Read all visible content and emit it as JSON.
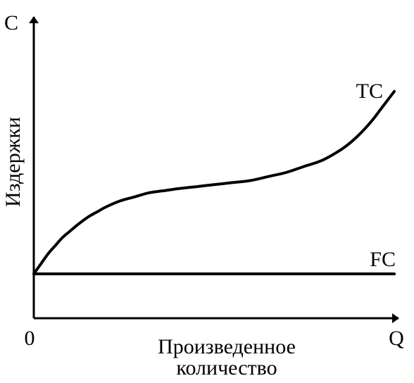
{
  "chart_data": {
    "type": "line",
    "title": "",
    "xlabel": "Произведенное количество",
    "xlabel_lines": [
      "Произведенное",
      "количество"
    ],
    "ylabel": "Издержки",
    "x_axis_symbol": "Q",
    "y_axis_symbol": "C",
    "origin_label": "0",
    "grid": false,
    "legend": "none",
    "series": [
      {
        "name": "TC",
        "shape": "cubic",
        "points": [
          [
            0,
            0.0
          ],
          [
            0.02,
            0.05
          ],
          [
            0.04,
            0.1
          ],
          [
            0.06,
            0.14
          ],
          [
            0.08,
            0.18
          ],
          [
            0.1,
            0.21
          ],
          [
            0.12,
            0.24
          ],
          [
            0.15,
            0.28
          ],
          [
            0.18,
            0.31
          ],
          [
            0.2,
            0.33
          ],
          [
            0.24,
            0.36
          ],
          [
            0.28,
            0.38
          ],
          [
            0.32,
            0.4
          ],
          [
            0.36,
            0.41
          ],
          [
            0.4,
            0.42
          ],
          [
            0.45,
            0.43
          ],
          [
            0.5,
            0.44
          ],
          [
            0.55,
            0.45
          ],
          [
            0.6,
            0.46
          ],
          [
            0.65,
            0.48
          ],
          [
            0.7,
            0.5
          ],
          [
            0.75,
            0.53
          ],
          [
            0.8,
            0.56
          ],
          [
            0.85,
            0.61
          ],
          [
            0.88,
            0.65
          ],
          [
            0.91,
            0.7
          ],
          [
            0.94,
            0.76
          ],
          [
            0.97,
            0.83
          ],
          [
            1.0,
            0.9
          ]
        ]
      },
      {
        "name": "FC",
        "shape": "constant",
        "points": [
          [
            0,
            0.0
          ],
          [
            1.0,
            0.0
          ]
        ]
      }
    ],
    "colors": {
      "axis": "#000000",
      "curve": "#000000",
      "background": "#ffffff"
    }
  }
}
